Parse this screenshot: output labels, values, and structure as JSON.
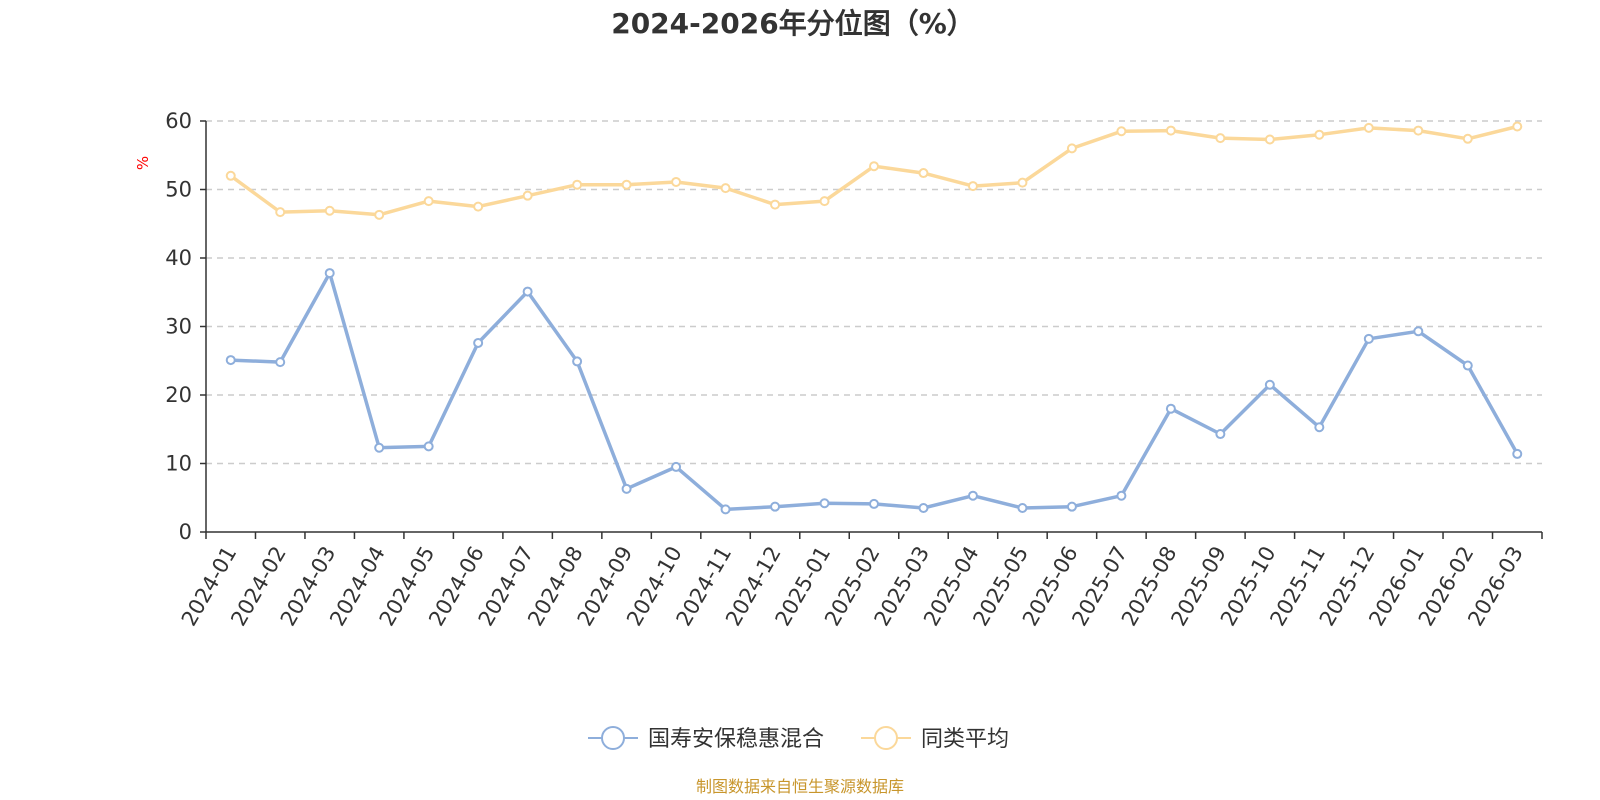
{
  "chart_data": {
    "type": "line",
    "title": "2024-2026年分位图（%）",
    "ylabel": "%",
    "xlabel": "",
    "ylim": [
      0,
      60
    ],
    "yticks": [
      0,
      10,
      20,
      30,
      40,
      50,
      60
    ],
    "grid": true,
    "legend_position": "bottom-center",
    "categories": [
      "2024-01",
      "2024-02",
      "2024-03",
      "2024-04",
      "2024-05",
      "2024-06",
      "2024-07",
      "2024-08",
      "2024-09",
      "2024-10",
      "2024-11",
      "2024-12",
      "2025-01",
      "2025-02",
      "2025-03",
      "2025-04",
      "2025-05",
      "2025-06",
      "2025-07",
      "2025-08",
      "2025-09",
      "2025-10",
      "2025-11",
      "2025-12",
      "2026-01",
      "2026-02",
      "2026-03"
    ],
    "series": [
      {
        "name": "国寿安保稳惠混合",
        "color": "#8eaedb",
        "values": [
          25.1,
          24.8,
          37.8,
          12.3,
          12.5,
          27.6,
          35.1,
          24.9,
          6.3,
          9.5,
          3.3,
          3.7,
          4.2,
          4.1,
          3.5,
          5.3,
          3.5,
          3.7,
          5.3,
          18.0,
          14.3,
          21.5,
          15.3,
          28.2,
          29.3,
          24.3,
          11.4
        ]
      },
      {
        "name": "同类平均",
        "color": "#fbd89a",
        "values": [
          52.0,
          46.7,
          46.9,
          46.3,
          48.3,
          47.5,
          49.1,
          50.7,
          50.7,
          51.1,
          50.2,
          47.8,
          48.3,
          53.4,
          52.4,
          50.5,
          51.0,
          56.0,
          58.5,
          58.6,
          57.5,
          57.3,
          58.0,
          59.0,
          58.6,
          57.4,
          59.2
        ]
      }
    ]
  },
  "colors": {
    "axis": "#333333",
    "grid": "#cccccc",
    "unit": "#ff0000",
    "source": "#c8962c"
  },
  "source_text": "制图数据来自恒生聚源数据库"
}
